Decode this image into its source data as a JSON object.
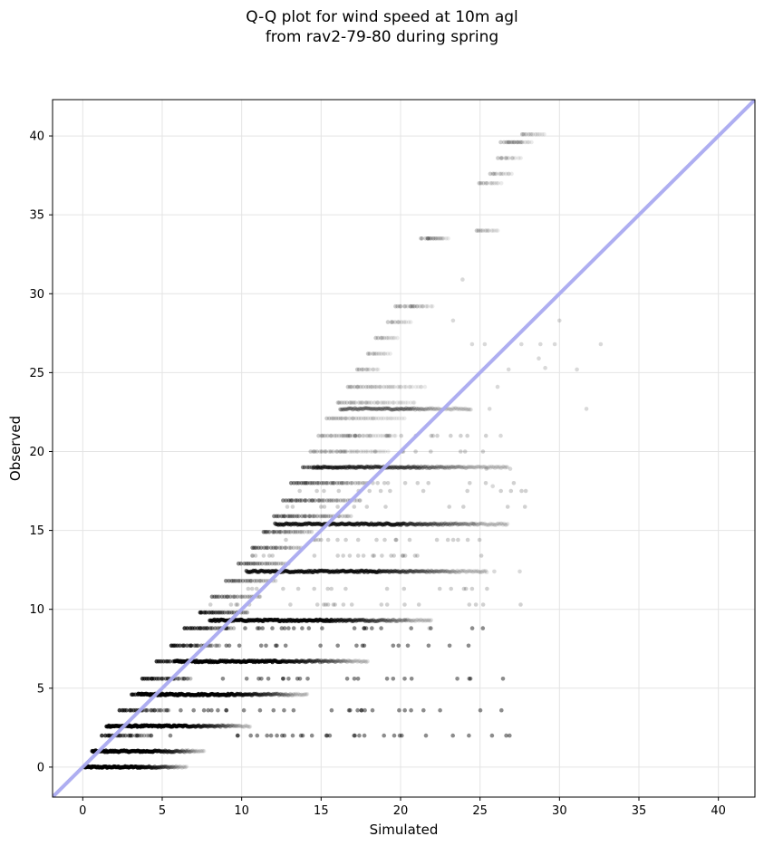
{
  "chart_data": {
    "type": "scatter",
    "title_lines": [
      "Q-Q plot for wind speed at 10m agl",
      "from rav2-79-80 during spring"
    ],
    "xlabel": "Simulated",
    "ylabel": "Observed",
    "xlim": [
      -1.9,
      42.3
    ],
    "ylim": [
      -1.9,
      42.3
    ],
    "xticks": [
      0,
      5,
      10,
      15,
      20,
      25,
      30,
      35,
      40
    ],
    "yticks": [
      0,
      5,
      10,
      15,
      20,
      25,
      30,
      35,
      40
    ],
    "grid": true,
    "reference_line": {
      "x": [
        -1.9,
        42.3
      ],
      "y": [
        -1.9,
        42.3
      ],
      "color": "#aaaaf0"
    },
    "point_color": "#000000",
    "observed_levels": [
      0,
      1.0,
      2.6,
      4.6,
      6.7,
      9.3,
      12.4,
      15.4,
      19.0,
      22.7
    ],
    "series": [
      {
        "dense_bands": [
          {
            "y": 0.0,
            "x_min": 0.1,
            "x_max": 6.6,
            "intensity": 0.9
          },
          {
            "y": 1.0,
            "x_min": 0.6,
            "x_max": 7.7,
            "intensity": 0.9
          },
          {
            "y": 2.6,
            "x_min": 1.5,
            "x_max": 10.6,
            "intensity": 0.9
          },
          {
            "y": 4.6,
            "x_min": 3.5,
            "x_max": 14.2,
            "intensity": 0.9
          },
          {
            "y": 6.7,
            "x_min": 5.8,
            "x_max": 18.0,
            "intensity": 0.8
          },
          {
            "y": 9.3,
            "x_min": 8.0,
            "x_max": 22.0,
            "intensity": 0.75
          },
          {
            "y": 12.4,
            "x_min": 10.3,
            "x_max": 25.5,
            "intensity": 0.6
          },
          {
            "y": 15.4,
            "x_min": 12.1,
            "x_max": 26.8,
            "intensity": 0.55
          },
          {
            "y": 19.0,
            "x_min": 14.5,
            "x_max": 26.8,
            "intensity": 0.35
          },
          {
            "y": 22.7,
            "x_min": 16.2,
            "x_max": 24.5,
            "intensity": 0.25
          }
        ],
        "staircase_upper_edge": [
          [
            0.0,
            0.0
          ],
          [
            0.6,
            1.0
          ],
          [
            1.2,
            2.0
          ],
          [
            1.7,
            2.6
          ],
          [
            2.3,
            3.6
          ],
          [
            3.0,
            4.6
          ],
          [
            3.7,
            5.6
          ],
          [
            4.6,
            6.7
          ],
          [
            5.5,
            7.7
          ],
          [
            6.4,
            8.8
          ],
          [
            7.3,
            9.8
          ],
          [
            8.1,
            10.8
          ],
          [
            9.0,
            11.8
          ],
          [
            9.8,
            12.9
          ],
          [
            10.6,
            13.9
          ],
          [
            11.3,
            14.9
          ],
          [
            12.0,
            15.9
          ],
          [
            12.6,
            16.9
          ],
          [
            13.1,
            18.0
          ],
          [
            13.8,
            19.0
          ],
          [
            14.3,
            20.0
          ],
          [
            14.8,
            21.0
          ],
          [
            15.3,
            22.1
          ],
          [
            16.0,
            23.1
          ],
          [
            16.6,
            24.1
          ],
          [
            17.2,
            25.2
          ],
          [
            17.9,
            26.2
          ],
          [
            18.4,
            27.2
          ],
          [
            19.2,
            28.2
          ],
          [
            19.6,
            29.2
          ],
          [
            20.6,
            29.2
          ],
          [
            21.2,
            33.5
          ],
          [
            21.6,
            33.5
          ],
          [
            24.7,
            34.0
          ],
          [
            24.9,
            37.0
          ],
          [
            25.6,
            37.6
          ],
          [
            26.1,
            38.6
          ],
          [
            26.3,
            39.6
          ],
          [
            26.8,
            39.6
          ],
          [
            27.6,
            40.1
          ]
        ],
        "outliers": [
          [
            23.3,
            28.3
          ],
          [
            24.5,
            26.8
          ],
          [
            25.3,
            26.8
          ],
          [
            27.6,
            26.8
          ],
          [
            28.8,
            26.8
          ],
          [
            29.7,
            26.8
          ],
          [
            30.0,
            28.3
          ],
          [
            31.1,
            25.2
          ],
          [
            32.6,
            26.8
          ],
          [
            29.1,
            25.3
          ],
          [
            28.7,
            25.9
          ],
          [
            26.8,
            25.2
          ],
          [
            31.7,
            22.7
          ],
          [
            25.6,
            22.7
          ],
          [
            26.3,
            21.0
          ],
          [
            26.1,
            24.1
          ],
          [
            23.9,
            30.9
          ],
          [
            25.9,
            12.4
          ],
          [
            27.5,
            12.4
          ],
          [
            24.6,
            15.4
          ],
          [
            25.4,
            18.9
          ],
          [
            26.9,
            18.9
          ],
          [
            25.8,
            17.8
          ],
          [
            21.8,
            8.8
          ],
          [
            20.3,
            9.3
          ]
        ]
      }
    ]
  }
}
